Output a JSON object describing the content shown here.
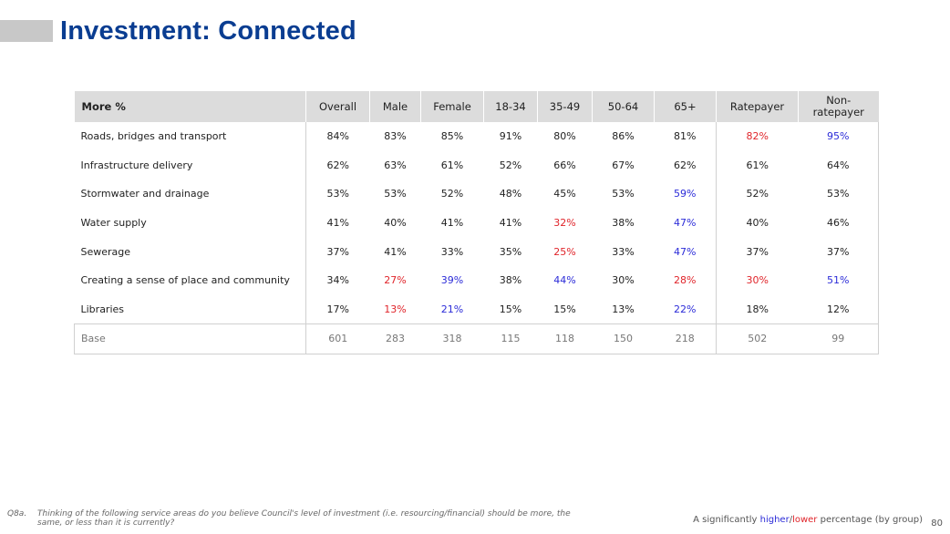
{
  "title": "Investment: Connected",
  "table": {
    "header_label": "More %",
    "columns": [
      "Overall",
      "Male",
      "Female",
      "18-34",
      "35-49",
      "50-64",
      "65+",
      "Ratepayer",
      "Non-ratepayer"
    ],
    "rows": [
      {
        "label": "Roads, bridges and transport",
        "values": [
          "84%",
          "83%",
          "85%",
          "91%",
          "80%",
          "86%",
          "81%",
          "82%",
          "95%"
        ],
        "sig": [
          "",
          "",
          "",
          "",
          "",
          "",
          "",
          "lower",
          "higher"
        ]
      },
      {
        "label": "Infrastructure delivery",
        "values": [
          "62%",
          "63%",
          "61%",
          "52%",
          "66%",
          "67%",
          "62%",
          "61%",
          "64%"
        ],
        "sig": [
          "",
          "",
          "",
          "",
          "",
          "",
          "",
          "",
          ""
        ]
      },
      {
        "label": "Stormwater and drainage",
        "values": [
          "53%",
          "53%",
          "52%",
          "48%",
          "45%",
          "53%",
          "59%",
          "52%",
          "53%"
        ],
        "sig": [
          "",
          "",
          "",
          "",
          "",
          "",
          "higher",
          "",
          ""
        ]
      },
      {
        "label": "Water supply",
        "values": [
          "41%",
          "40%",
          "41%",
          "41%",
          "32%",
          "38%",
          "47%",
          "40%",
          "46%"
        ],
        "sig": [
          "",
          "",
          "",
          "",
          "lower",
          "",
          "higher",
          "",
          ""
        ]
      },
      {
        "label": "Sewerage",
        "values": [
          "37%",
          "41%",
          "33%",
          "35%",
          "25%",
          "33%",
          "47%",
          "37%",
          "37%"
        ],
        "sig": [
          "",
          "",
          "",
          "",
          "lower",
          "",
          "higher",
          "",
          ""
        ]
      },
      {
        "label": "Creating a sense of place and community",
        "values": [
          "34%",
          "27%",
          "39%",
          "38%",
          "44%",
          "30%",
          "28%",
          "30%",
          "51%"
        ],
        "sig": [
          "",
          "lower",
          "higher",
          "",
          "higher",
          "",
          "lower",
          "lower",
          "higher"
        ]
      },
      {
        "label": "Libraries",
        "values": [
          "17%",
          "13%",
          "21%",
          "15%",
          "15%",
          "13%",
          "22%",
          "18%",
          "12%"
        ],
        "sig": [
          "",
          "lower",
          "higher",
          "",
          "",
          "",
          "higher",
          "",
          ""
        ]
      }
    ],
    "base": {
      "label": "Base",
      "values": [
        "601",
        "283",
        "318",
        "115",
        "118",
        "150",
        "218",
        "502",
        "99"
      ]
    }
  },
  "colors": {
    "title": "#0a3d91",
    "higher": "#2b2bd8",
    "lower": "#e0242a",
    "header_bg": "#dcdcdc"
  },
  "footnote": {
    "number": "Q8a.",
    "text": "Thinking of the following service areas do you believe Council's level of investment (i.e. resourcing/financial) should be more, the same, or less than it is currently?"
  },
  "legend": {
    "prefix": "A significantly ",
    "higher": "higher",
    "slash": "/",
    "lower": "lower",
    "suffix": " percentage (by group)"
  },
  "page_number": "80"
}
